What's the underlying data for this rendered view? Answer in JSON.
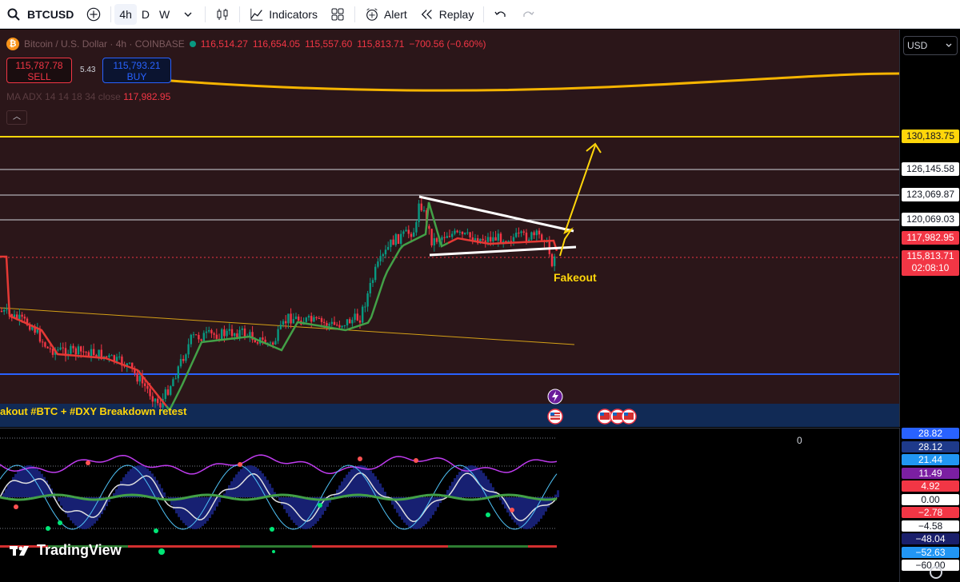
{
  "toolbar": {
    "symbol": "BTCUSD",
    "timeframes": [
      "4h",
      "D",
      "W"
    ],
    "active_timeframe": "4h",
    "indicators_label": "Indicators",
    "alert_label": "Alert",
    "replay_label": "Replay"
  },
  "legend": {
    "title": "Bitcoin / U.S. Dollar · 4h · COINBASE",
    "open": "116,514.27",
    "high": "116,654.05",
    "low": "115,557.60",
    "close": "115,813.71",
    "change": "−700.56 (−0.60%)"
  },
  "trade": {
    "sell_price": "115,787.78",
    "sell_label": "SELL",
    "spread": "5.43",
    "buy_price": "115,793.21",
    "buy_label": "BUY"
  },
  "ma_legend": {
    "name": "MA ADX 14 14 18 34 close",
    "value": "117,982.95"
  },
  "annotations": {
    "fakeout": "Fakeout",
    "bottom_text": "akout #BTC + #DXY Breakdown retest"
  },
  "price_scale": {
    "currency": "USD",
    "levels": [
      {
        "label": "130,183.75",
        "kind": "yellow"
      },
      {
        "label": "126,145.58",
        "kind": "white"
      },
      {
        "label": "123,069.87",
        "kind": "white"
      },
      {
        "label": "120,069.03",
        "kind": "white"
      },
      {
        "label": "117,982.95",
        "kind": "red"
      }
    ],
    "last_price": "115,813.71",
    "countdown": "02:08:10"
  },
  "oscillator": {
    "zero_label": "0",
    "labels": [
      {
        "label": "28.82",
        "color": "#2962ff"
      },
      {
        "label": "28.12",
        "color": "#1e3a8a"
      },
      {
        "label": "21.44",
        "color": "#2196f3"
      },
      {
        "label": "11.49",
        "color": "#7b1fa2"
      },
      {
        "label": "4.92",
        "color": "#f23645"
      },
      {
        "label": "0.00",
        "color": "#ffffff"
      },
      {
        "label": "−2.78",
        "color": "#f23645"
      },
      {
        "label": "−4.58",
        "color": "#ffffff"
      },
      {
        "label": "−48.04",
        "color": "#1a1f6b"
      },
      {
        "label": "−52.63",
        "color": "#2196f3"
      },
      {
        "label": "−60.00",
        "color": "#ffffff"
      }
    ]
  },
  "watermark": "TradingView",
  "colors": {
    "bull": "#089981",
    "bear": "#f23645",
    "ma_long": "#f5b400",
    "pattern": "#ffffff",
    "arrow": "#ffd60a"
  }
}
